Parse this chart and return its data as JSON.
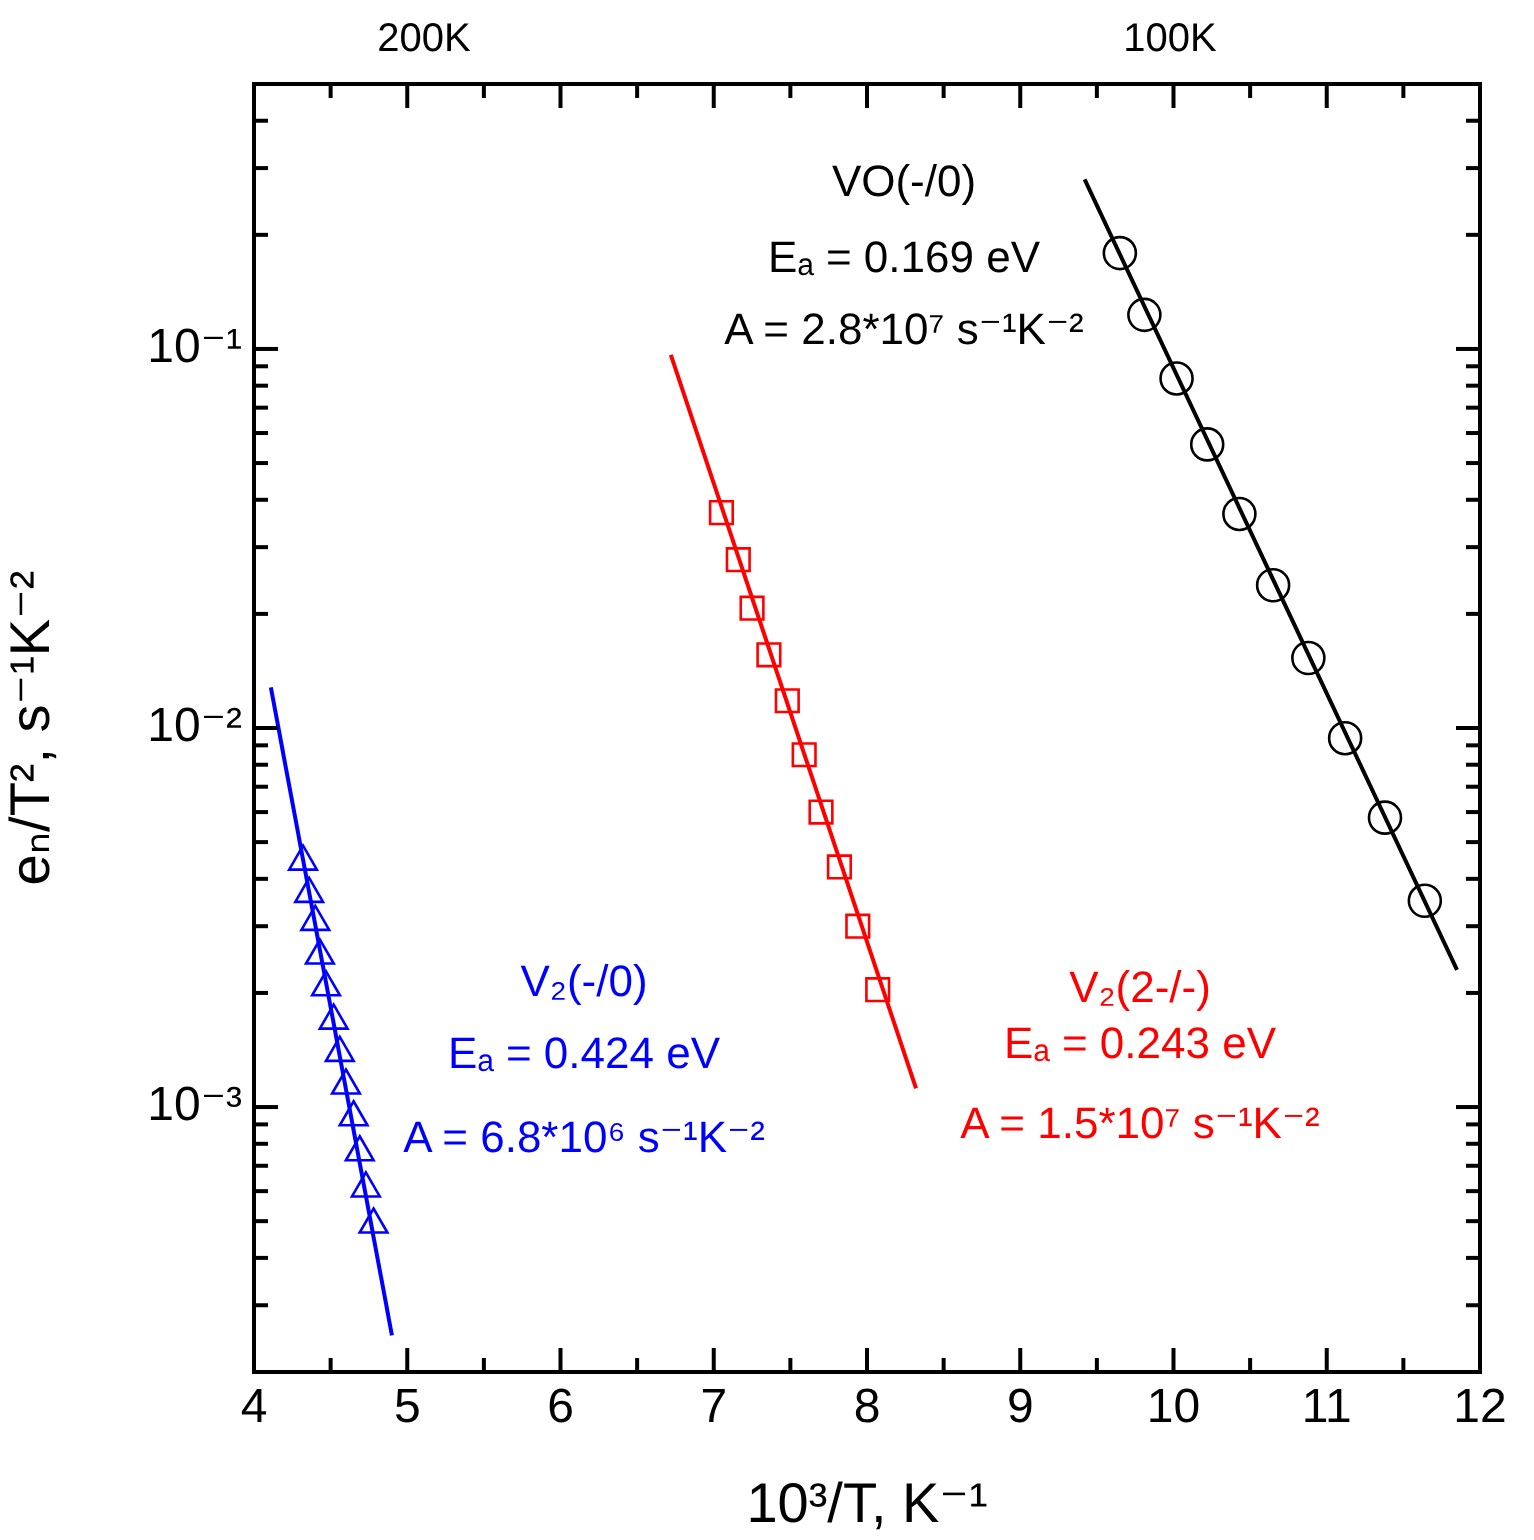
{
  "chart_data": {
    "type": "scatter",
    "xlabel": "10³/T, K⁻¹",
    "ylabel": "eₙ/T², s⁻¹K⁻²",
    "log": "y",
    "grid": false,
    "legend": false,
    "xlim": [
      4,
      12
    ],
    "xticks": [
      4,
      {
        "value": 4.5,
        "label": null
      },
      5,
      {
        "value": 5.5,
        "label": null
      },
      6,
      {
        "value": 6.5,
        "label": null
      },
      7,
      {
        "value": 7.5,
        "label": null
      },
      8,
      {
        "value": 8.5,
        "label": null
      },
      9,
      {
        "value": 9.5,
        "label": null
      },
      10,
      {
        "value": 10.5,
        "label": null
      },
      11,
      {
        "value": 11.5,
        "label": null
      },
      12
    ],
    "ylim": [
      0.0002,
      0.5
    ],
    "yticks": [
      {
        "value": 0.0002,
        "label": null
      },
      {
        "value": 0.0003,
        "label": null
      },
      {
        "value": 0.0004,
        "label": null
      },
      {
        "value": 0.0005,
        "label": null
      },
      {
        "value": 0.0006,
        "label": null
      },
      {
        "value": 0.0007,
        "label": null
      },
      {
        "value": 0.0008,
        "label": null
      },
      {
        "value": 0.0009,
        "label": null
      },
      {
        "value": 0.001,
        "label": "10⁻³"
      },
      {
        "value": 0.002,
        "label": null
      },
      {
        "value": 0.003,
        "label": null
      },
      {
        "value": 0.004,
        "label": null
      },
      {
        "value": 0.005,
        "label": null
      },
      {
        "value": 0.006,
        "label": null
      },
      {
        "value": 0.007,
        "label": null
      },
      {
        "value": 0.008,
        "label": null
      },
      {
        "value": 0.009,
        "label": null
      },
      {
        "value": 0.01,
        "label": "10⁻²"
      },
      {
        "value": 0.02,
        "label": null
      },
      {
        "value": 0.03,
        "label": null
      },
      {
        "value": 0.04,
        "label": null
      },
      {
        "value": 0.05,
        "label": null
      },
      {
        "value": 0.06,
        "label": null
      },
      {
        "value": 0.07,
        "label": null
      },
      {
        "value": 0.08,
        "label": null
      },
      {
        "value": 0.09,
        "label": null
      },
      {
        "value": 0.1,
        "label": "10⁻¹"
      },
      {
        "value": 0.2,
        "label": null
      },
      {
        "value": 0.3,
        "label": null
      },
      {
        "value": 0.4,
        "label": null
      },
      {
        "value": 0.5,
        "label": null
      }
    ],
    "series": [
      {
        "marker": "circle",
        "color": "#000000",
        "x": [
          9.65,
          9.81,
          10.02,
          10.22,
          10.43,
          10.65,
          10.88,
          11.12,
          11.38,
          11.64
        ],
        "values": [
          0.179,
          0.123,
          0.0836,
          0.056,
          0.0367,
          0.0238,
          0.0153,
          0.0094,
          0.0058,
          0.0035
        ]
      },
      {
        "type": "line",
        "marker": "none",
        "color": "#000000",
        "x": [
          9.42,
          11.85
        ],
        "values": [
          0.28,
          0.0023
        ]
      },
      {
        "marker": "square",
        "color": "#ff0000",
        "x": [
          7.05,
          7.16,
          7.25,
          7.36,
          7.48,
          7.59,
          7.7,
          7.82,
          7.94,
          8.07
        ],
        "values": [
          0.037,
          0.0278,
          0.0207,
          0.0156,
          0.0118,
          0.0085,
          0.006,
          0.0043,
          0.003,
          0.00204
        ]
      },
      {
        "type": "line",
        "marker": "none",
        "color": "#ff0000",
        "x": [
          6.72,
          8.32
        ],
        "values": [
          0.0964,
          0.00112
        ]
      },
      {
        "marker": "triangle",
        "color": "#0000ff",
        "x": [
          4.32,
          4.36,
          4.4,
          4.43,
          4.47,
          4.52,
          4.56,
          4.6,
          4.65,
          4.69,
          4.73,
          4.78
        ],
        "values": [
          0.00444,
          0.00365,
          0.00308,
          0.00251,
          0.00207,
          0.00169,
          0.00139,
          0.00114,
          0.00094,
          0.00076,
          0.00061,
          0.00049
        ]
      },
      {
        "type": "line",
        "marker": "none",
        "color": "#0000ff",
        "x": [
          4.11,
          4.9
        ],
        "values": [
          0.0128,
          0.00025
        ]
      }
    ],
    "annotations": [
      "200K",
      "100K",
      "VO(-/0)",
      "Eₐ = 0.169 eV",
      "A = 2.8*10⁷ s⁻¹K⁻²",
      "V₂(-/0)",
      "Eₐ = 0.424 eV",
      "A = 6.8*10⁶ s⁻¹K⁻²",
      "V₂(2-/-)",
      "Eₐ = 0.243 eV",
      "A = 1.5*10⁷ s⁻¹K⁻²"
    ]
  }
}
